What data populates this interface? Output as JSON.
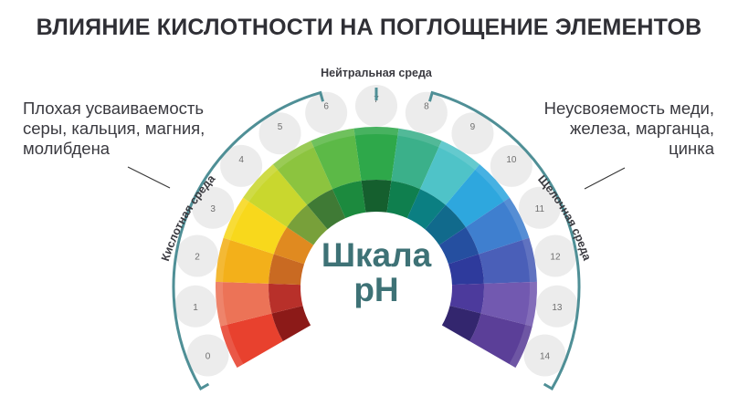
{
  "title": "ВЛИЯНИЕ КИСЛОТНОСТИ НА ПОГЛОЩЕНИЕ ЭЛЕМЕНТОВ",
  "center_label": {
    "line1": "Шкала",
    "line2": "pH",
    "color": "#3e7276"
  },
  "neutral_label": "Нейтральная среда",
  "acid_label": "Кислотная среда",
  "alkaline_label": "Щелочная среда",
  "left_note": "Плохая усваиваемость\nсеры, кальция, магния,\nмолибдена",
  "right_note": "Неусвояемость меди,\nжелеза, марганца,\nцинка",
  "bracket_color": "#4f8f96",
  "scale": [
    {
      "ph": "0",
      "outer": "#e8412e",
      "inner": "#8c1a18"
    },
    {
      "ph": "1",
      "outer": "#ec7357",
      "inner": "#b8302a"
    },
    {
      "ph": "2",
      "outer": "#f3b01a",
      "inner": "#c96a22"
    },
    {
      "ph": "3",
      "outer": "#f8d81c",
      "inner": "#e08a20"
    },
    {
      "ph": "4",
      "outer": "#c9d72e",
      "inner": "#78a03a"
    },
    {
      "ph": "5",
      "outer": "#8cc43f",
      "inner": "#3f7a35"
    },
    {
      "ph": "6",
      "outer": "#5cb947",
      "inner": "#1c8a3e"
    },
    {
      "ph": "7",
      "outer": "#2ea84a",
      "inner": "#155f2e"
    },
    {
      "ph": "8",
      "outer": "#3bb08a",
      "inner": "#0f7f4e"
    },
    {
      "ph": "9",
      "outer": "#4fc3c8",
      "inner": "#0b7f82"
    },
    {
      "ph": "10",
      "outer": "#2ea7de",
      "inner": "#116a8c"
    },
    {
      "ph": "11",
      "outer": "#3f7fcf",
      "inner": "#254fa0"
    },
    {
      "ph": "12",
      "outer": "#4a5fb8",
      "inner": "#2e3a9c"
    },
    {
      "ph": "13",
      "outer": "#7259b0",
      "inner": "#4c3a9c"
    },
    {
      "ph": "14",
      "outer": "#5b3f98",
      "inner": "#33266e"
    }
  ]
}
